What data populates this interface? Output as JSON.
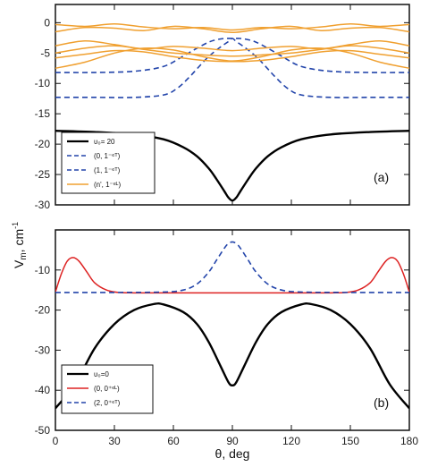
{
  "chart_data": [
    {
      "panel": "a",
      "type": "line",
      "tag": "(a)",
      "xlim": [
        0,
        180
      ],
      "ylim": [
        -30,
        3
      ],
      "yticks": [
        0,
        -5,
        -10,
        -15,
        -20,
        -25,
        -30
      ],
      "grid": false,
      "legend_placement": "bottom-left",
      "legend": [
        {
          "label": "υ₀= 20",
          "color": "#000000",
          "style": "solid"
        },
        {
          "label": "(0, 1⁻ᵉᵀ)",
          "color": "#2244aa",
          "style": "dashed"
        },
        {
          "label": "(1, 1⁻ᵉᵀ)",
          "color": "#2244aa",
          "style": "dashed"
        },
        {
          "label": "(n', 1⁻ᵉᴸ)",
          "color": "#f0a030",
          "style": "solid"
        }
      ],
      "series": [
        {
          "color": "#000000",
          "style": "solid",
          "width": 2.4,
          "x": [
            0,
            20,
            40,
            55,
            65,
            72,
            78,
            82,
            86,
            88,
            90,
            92,
            94,
            98,
            102,
            108,
            115,
            125,
            140,
            160,
            180
          ],
          "y": [
            -17.8,
            -18.0,
            -18.4,
            -19.2,
            -20.5,
            -22.0,
            -24.0,
            -25.8,
            -27.8,
            -28.8,
            -29.3,
            -28.8,
            -27.8,
            -25.8,
            -24.0,
            -22.0,
            -20.5,
            -19.2,
            -18.4,
            -18.0,
            -17.8
          ]
        },
        {
          "color": "#2244aa",
          "style": "dashed",
          "width": 1.6,
          "x": [
            0,
            20,
            40,
            55,
            65,
            72,
            78,
            82,
            86,
            90,
            94,
            98,
            102,
            108,
            115,
            125,
            140,
            160,
            180
          ],
          "y": [
            -8.2,
            -8.2,
            -8.0,
            -7.2,
            -5.5,
            -4.2,
            -3.2,
            -2.8,
            -2.6,
            -2.6,
            -2.6,
            -2.8,
            -3.2,
            -4.2,
            -5.5,
            -7.2,
            -8.0,
            -8.2,
            -8.2
          ]
        },
        {
          "color": "#2244aa",
          "style": "dashed",
          "width": 1.6,
          "x": [
            0,
            20,
            40,
            55,
            62,
            68,
            72,
            76,
            80,
            84,
            88,
            90,
            92,
            96,
            100,
            104,
            108,
            112,
            118,
            125,
            140,
            160,
            180
          ],
          "y": [
            -12.3,
            -12.3,
            -12.3,
            -11.9,
            -10.8,
            -9.0,
            -7.6,
            -6.2,
            -5.0,
            -4.0,
            -3.1,
            -2.6,
            -3.1,
            -4.0,
            -5.0,
            -6.2,
            -7.6,
            -9.0,
            -10.8,
            -11.9,
            -12.3,
            -12.3,
            -12.3
          ]
        },
        {
          "color": "#f0a030",
          "style": "solid",
          "width": 1.5,
          "x": [
            0,
            15,
            30,
            45,
            60,
            75,
            90,
            105,
            120,
            135,
            150,
            165,
            180
          ],
          "y": [
            -0.3,
            -0.6,
            -0.2,
            -0.7,
            -1.0,
            -0.8,
            -1.2,
            -0.8,
            -1.0,
            -0.7,
            -0.2,
            -0.6,
            -0.3
          ]
        },
        {
          "color": "#f0a030",
          "style": "solid",
          "width": 1.5,
          "x": [
            0,
            15,
            30,
            45,
            60,
            75,
            90,
            105,
            120,
            135,
            150,
            165,
            180
          ],
          "y": [
            -1.5,
            -0.8,
            -0.9,
            -1.3,
            -0.6,
            -1.0,
            -1.6,
            -1.0,
            -0.6,
            -1.3,
            -0.9,
            -0.8,
            -1.5
          ]
        },
        {
          "color": "#f0a030",
          "style": "solid",
          "width": 1.5,
          "x": [
            0,
            15,
            30,
            45,
            60,
            75,
            90,
            105,
            120,
            135,
            150,
            165,
            180
          ],
          "y": [
            -3.8,
            -3.0,
            -3.6,
            -4.3,
            -3.9,
            -4.2,
            -4.6,
            -4.2,
            -3.9,
            -4.3,
            -3.6,
            -3.0,
            -3.8
          ]
        },
        {
          "color": "#f0a030",
          "style": "solid",
          "width": 1.5,
          "x": [
            0,
            15,
            30,
            45,
            60,
            75,
            90,
            105,
            120,
            135,
            150,
            165,
            180
          ],
          "y": [
            -5.0,
            -4.2,
            -3.8,
            -4.4,
            -5.0,
            -5.3,
            -5.5,
            -5.3,
            -5.0,
            -4.4,
            -3.8,
            -4.2,
            -5.0
          ]
        },
        {
          "color": "#f0a030",
          "style": "solid",
          "width": 1.5,
          "x": [
            0,
            15,
            30,
            45,
            60,
            75,
            90,
            105,
            120,
            135,
            150,
            165,
            180
          ],
          "y": [
            -5.8,
            -5.2,
            -4.6,
            -4.8,
            -5.6,
            -6.2,
            -6.4,
            -6.2,
            -5.6,
            -4.8,
            -4.6,
            -5.2,
            -5.8
          ]
        },
        {
          "color": "#f0a030",
          "style": "solid",
          "width": 1.5,
          "x": [
            0,
            15,
            30,
            45,
            60,
            75,
            90,
            105,
            120,
            135,
            150,
            165,
            180
          ],
          "y": [
            -7.5,
            -6.5,
            -5.0,
            -4.2,
            -4.5,
            -5.6,
            -6.3,
            -5.6,
            -4.5,
            -4.2,
            -5.0,
            -6.5,
            -7.5
          ]
        }
      ]
    },
    {
      "panel": "b",
      "type": "line",
      "tag": "(b)",
      "xlim": [
        0,
        180
      ],
      "ylim": [
        -50,
        0
      ],
      "xticks": [
        0,
        30,
        60,
        90,
        120,
        150,
        180
      ],
      "yticks": [
        -10,
        -20,
        -30,
        -40,
        -50
      ],
      "grid": false,
      "legend_placement": "bottom-left",
      "legend": [
        {
          "label": "υ₀=0",
          "color": "#000000",
          "style": "solid"
        },
        {
          "label": "(0, 0⁺ᵉᴸ)",
          "color": "#dd2222",
          "style": "solid"
        },
        {
          "label": "(2, 0⁺ᵉᵀ)",
          "color": "#2244aa",
          "style": "dashed"
        }
      ],
      "series": [
        {
          "color": "#000000",
          "style": "solid",
          "width": 2.4,
          "x": [
            0,
            10,
            20,
            30,
            40,
            50,
            55,
            65,
            72,
            78,
            84,
            88,
            90,
            92,
            96,
            102,
            108,
            115,
            125,
            130,
            140,
            150,
            160,
            170,
            180
          ],
          "y": [
            -44.5,
            -38.5,
            -29.5,
            -23.5,
            -20.0,
            -18.5,
            -18.6,
            -20.5,
            -23.5,
            -28.0,
            -34.0,
            -38.0,
            -38.8,
            -38.0,
            -34.0,
            -28.0,
            -23.5,
            -20.5,
            -18.6,
            -18.5,
            -20.0,
            -23.5,
            -29.5,
            -38.5,
            -44.5
          ]
        },
        {
          "color": "#dd2222",
          "style": "solid",
          "width": 1.5,
          "x": [
            0,
            3,
            6,
            9,
            12,
            16,
            20,
            26,
            32,
            40,
            60,
            90,
            120,
            140,
            148,
            154,
            160,
            164,
            168,
            171,
            174,
            177,
            180
          ],
          "y": [
            -15.5,
            -11.0,
            -7.8,
            -6.9,
            -7.8,
            -10.5,
            -13.2,
            -15.0,
            -15.6,
            -15.7,
            -15.7,
            -15.7,
            -15.7,
            -15.7,
            -15.6,
            -15.0,
            -13.2,
            -10.5,
            -7.8,
            -6.9,
            -7.8,
            -11.0,
            -15.5
          ]
        },
        {
          "color": "#2244aa",
          "style": "dashed",
          "width": 1.6,
          "x": [
            0,
            30,
            55,
            65,
            72,
            78,
            82,
            86,
            88,
            90,
            92,
            94,
            98,
            102,
            108,
            115,
            125,
            150,
            180
          ],
          "y": [
            -15.6,
            -15.6,
            -15.5,
            -15.0,
            -13.5,
            -10.5,
            -7.5,
            -4.5,
            -3.4,
            -3.0,
            -3.4,
            -4.5,
            -7.5,
            -10.5,
            -13.5,
            -15.0,
            -15.5,
            -15.6,
            -15.6
          ]
        }
      ]
    }
  ],
  "labels": {
    "ylabel": "V",
    "ylabel_sub": "m",
    "ylabel_unit": ", cm",
    "ylabel_sup": "-1",
    "xlabel": "θ, deg"
  }
}
